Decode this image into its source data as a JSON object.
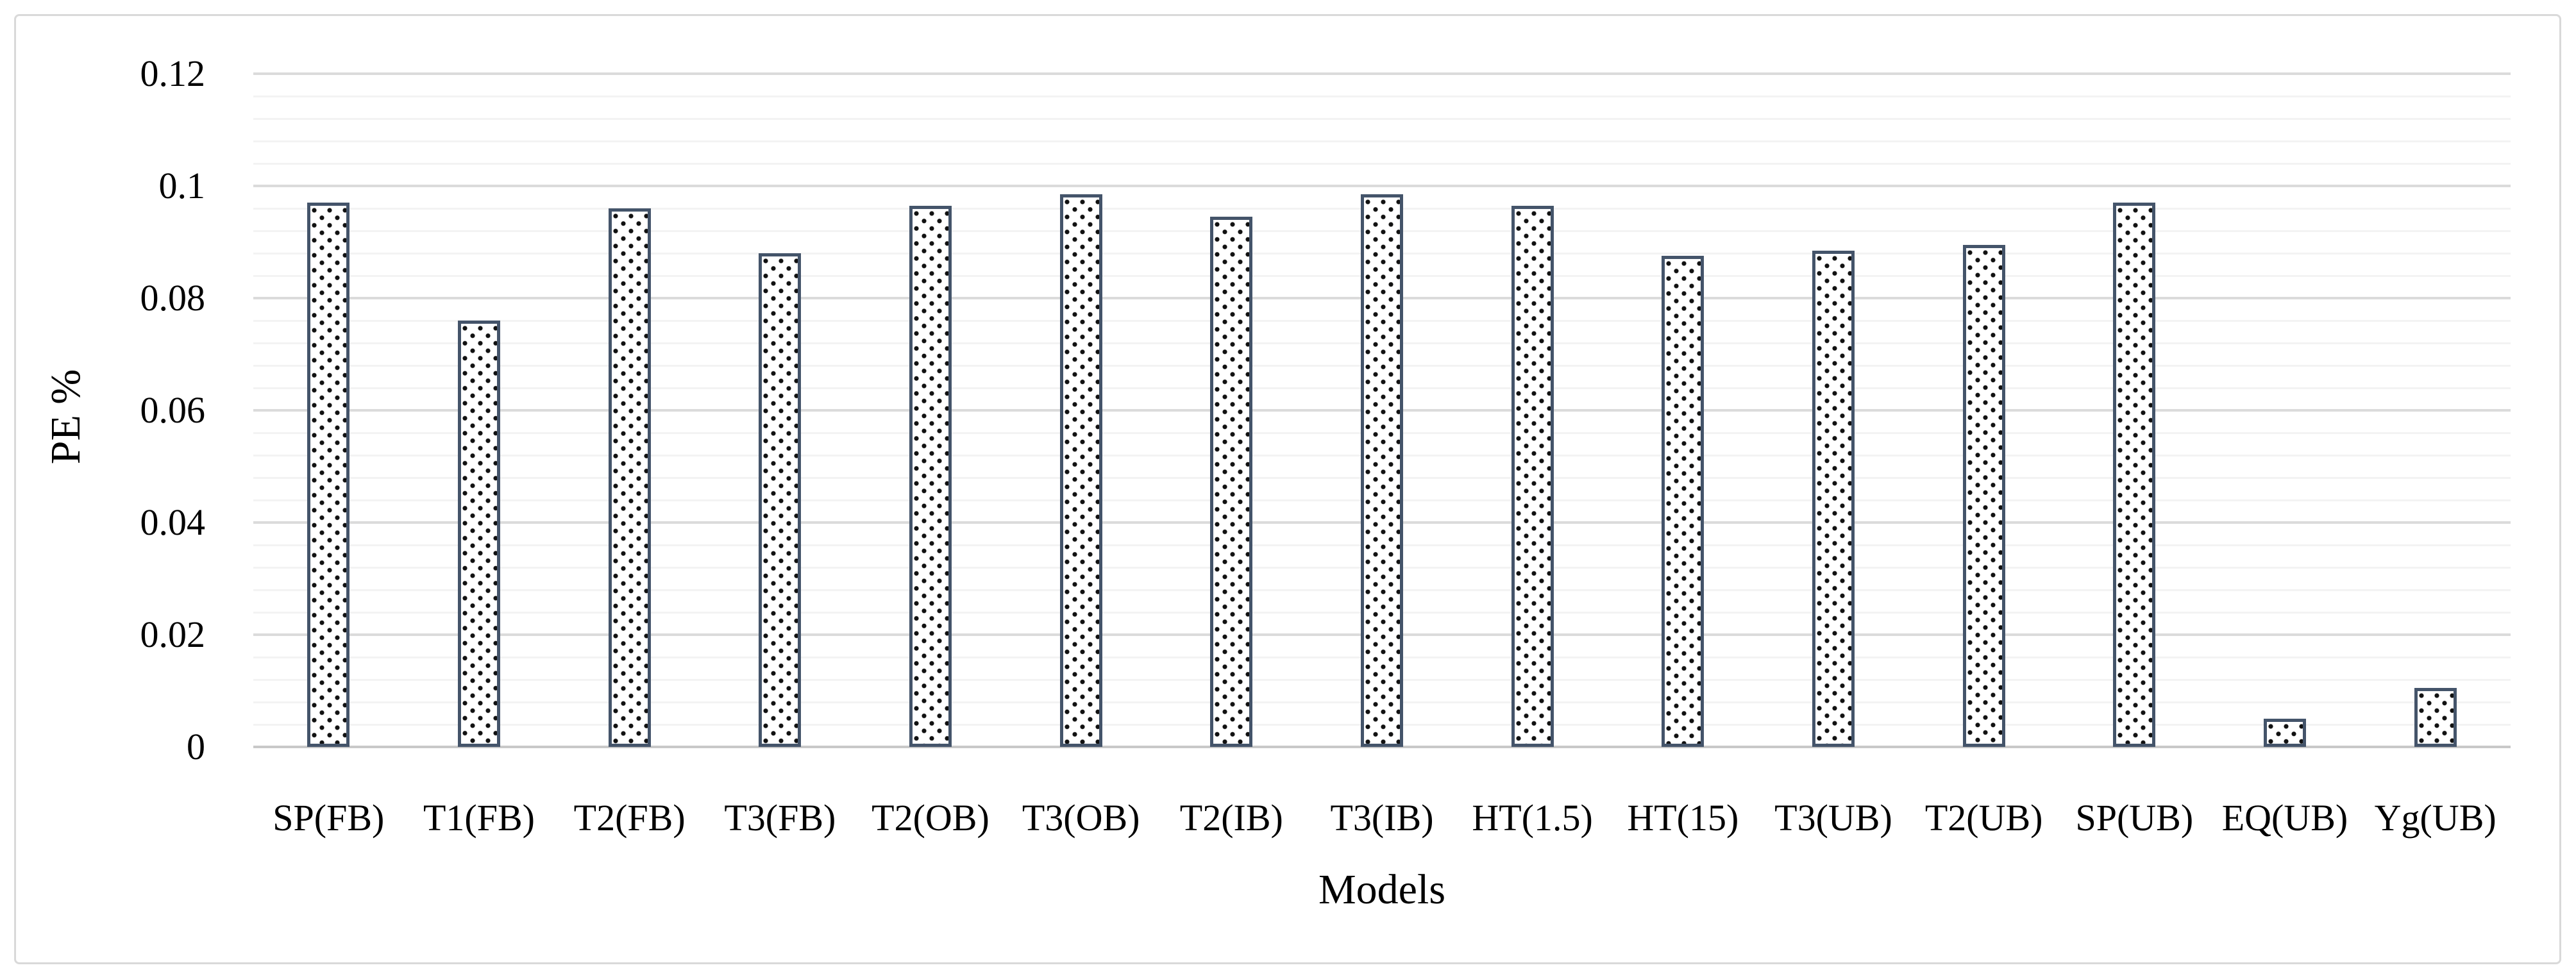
{
  "chart_data": {
    "type": "bar",
    "title": "",
    "categories": [
      "SP(FB)",
      "T1(FB)",
      "T2(FB)",
      "T3(FB)",
      "T2(OB)",
      "T3(OB)",
      "T2(IB)",
      "T3(IB)",
      "HT(1.5)",
      "HT(15)",
      "T3(UB)",
      "T2(UB)",
      "SP(UB)",
      "EQ(UB)",
      "Yg(UB)"
    ],
    "values": [
      0.097,
      0.076,
      0.096,
      0.088,
      0.0965,
      0.0985,
      0.0945,
      0.0985,
      0.0965,
      0.0875,
      0.0885,
      0.0895,
      0.097,
      0.005,
      0.0105
    ],
    "xlabel": "Models",
    "ylabel": "PE %",
    "ylim": [
      0,
      0.12
    ],
    "y_major_unit": 0.02,
    "y_minor_unit": 0.004,
    "y_tick_labels": [
      "0",
      "0.02",
      "0.04",
      "0.06",
      "0.08",
      "0.1",
      "0.12"
    ],
    "grid": "horizontal major and minor gridlines",
    "legend": "none",
    "series_name": "PE",
    "bar_fill": "#ffffff",
    "bar_pattern": "black square dots",
    "bar_border_color": "#44546A",
    "dot_color": "#111111",
    "gridline_major_color": "#dbdbdb",
    "gridline_minor_color": "#f3f3f3",
    "axis_line_color": "#c9c9c9",
    "frame_border_color": "#d9d9d9",
    "background_color": "#ffffff"
  }
}
